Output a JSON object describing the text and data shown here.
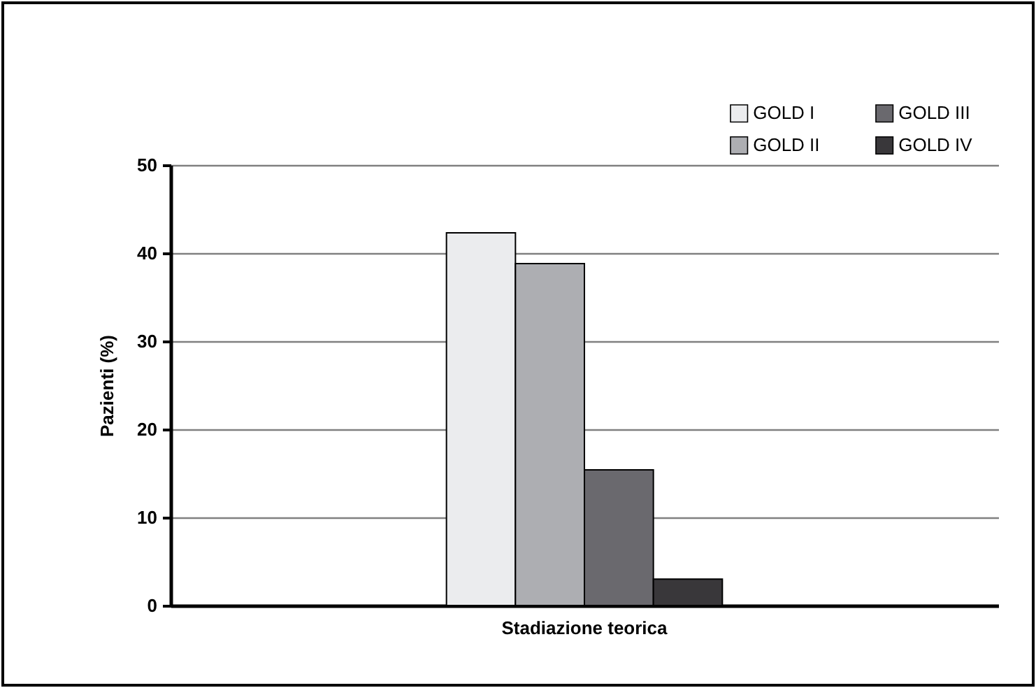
{
  "chart_data": {
    "type": "bar",
    "ylabel": "Pazienti (%)",
    "categories": [
      "Stadiazione teorica"
    ],
    "series": [
      {
        "name": "GOLD I",
        "color": "#ebecee",
        "values": [
          42.3
        ]
      },
      {
        "name": "GOLD II",
        "color": "#adaeb2",
        "values": [
          38.8
        ]
      },
      {
        "name": "GOLD III",
        "color": "#6a696e",
        "values": [
          15.4
        ]
      },
      {
        "name": "GOLD IV",
        "color": "#39373a",
        "values": [
          3.0
        ]
      }
    ],
    "ylim": [
      0,
      50
    ],
    "yticks": [
      0,
      10,
      20,
      30,
      40,
      50
    ],
    "grid": "y",
    "legend": "top right"
  }
}
